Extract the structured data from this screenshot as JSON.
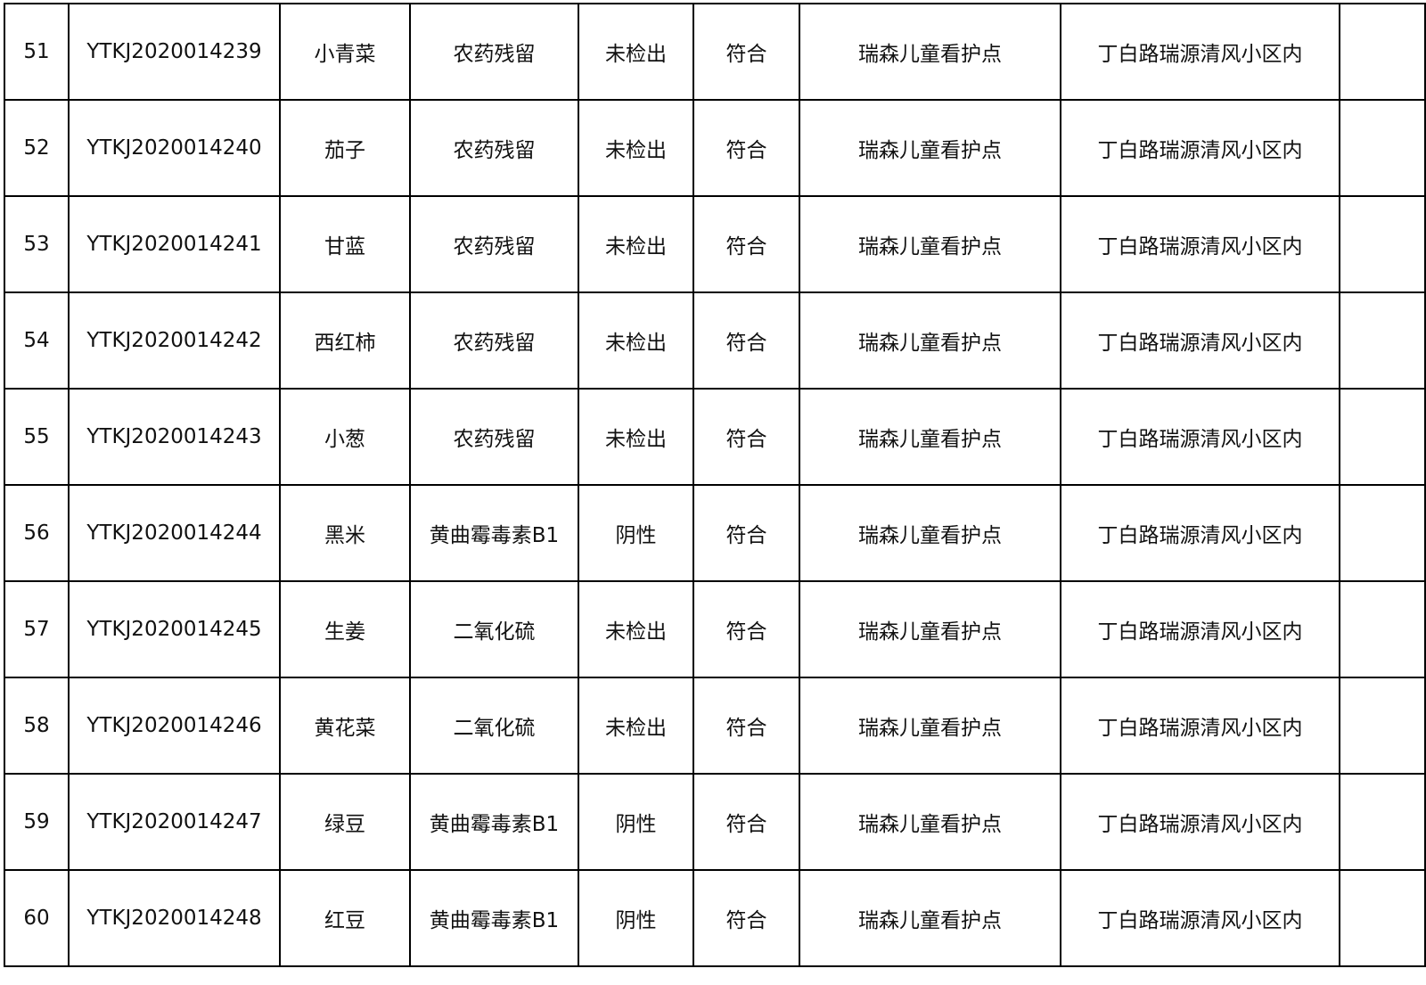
{
  "rows": [
    {
      "no": "51",
      "code": "YTKJ2020014239",
      "name": "小青菜",
      "item": "农药残留",
      "result": "未检出",
      "judge": "符合",
      "site": "瑞森儿童看护点",
      "addr": "丁白路瑞源清风小区内",
      "note": ""
    },
    {
      "no": "52",
      "code": "YTKJ2020014240",
      "name": "茄子",
      "item": "农药残留",
      "result": "未检出",
      "judge": "符合",
      "site": "瑞森儿童看护点",
      "addr": "丁白路瑞源清风小区内",
      "note": ""
    },
    {
      "no": "53",
      "code": "YTKJ2020014241",
      "name": "甘蓝",
      "item": "农药残留",
      "result": "未检出",
      "judge": "符合",
      "site": "瑞森儿童看护点",
      "addr": "丁白路瑞源清风小区内",
      "note": ""
    },
    {
      "no": "54",
      "code": "YTKJ2020014242",
      "name": "西红柿",
      "item": "农药残留",
      "result": "未检出",
      "judge": "符合",
      "site": "瑞森儿童看护点",
      "addr": "丁白路瑞源清风小区内",
      "note": ""
    },
    {
      "no": "55",
      "code": "YTKJ2020014243",
      "name": "小葱",
      "item": "农药残留",
      "result": "未检出",
      "judge": "符合",
      "site": "瑞森儿童看护点",
      "addr": "丁白路瑞源清风小区内",
      "note": ""
    },
    {
      "no": "56",
      "code": "YTKJ2020014244",
      "name": "黑米",
      "item": "黄曲霉毒素B1",
      "result": "阴性",
      "judge": "符合",
      "site": "瑞森儿童看护点",
      "addr": "丁白路瑞源清风小区内",
      "note": ""
    },
    {
      "no": "57",
      "code": "YTKJ2020014245",
      "name": "生姜",
      "item": "二氧化硫",
      "result": "未检出",
      "judge": "符合",
      "site": "瑞森儿童看护点",
      "addr": "丁白路瑞源清风小区内",
      "note": ""
    },
    {
      "no": "58",
      "code": "YTKJ2020014246",
      "name": "黄花菜",
      "item": "二氧化硫",
      "result": "未检出",
      "judge": "符合",
      "site": "瑞森儿童看护点",
      "addr": "丁白路瑞源清风小区内",
      "note": ""
    },
    {
      "no": "59",
      "code": "YTKJ2020014247",
      "name": "绿豆",
      "item": "黄曲霉毒素B1",
      "result": "阴性",
      "judge": "符合",
      "site": "瑞森儿童看护点",
      "addr": "丁白路瑞源清风小区内",
      "note": ""
    },
    {
      "no": "60",
      "code": "YTKJ2020014248",
      "name": "红豆",
      "item": "黄曲霉毒素B1",
      "result": "阴性",
      "judge": "符合",
      "site": "瑞森儿童看护点",
      "addr": "丁白路瑞源清风小区内",
      "note": ""
    }
  ]
}
